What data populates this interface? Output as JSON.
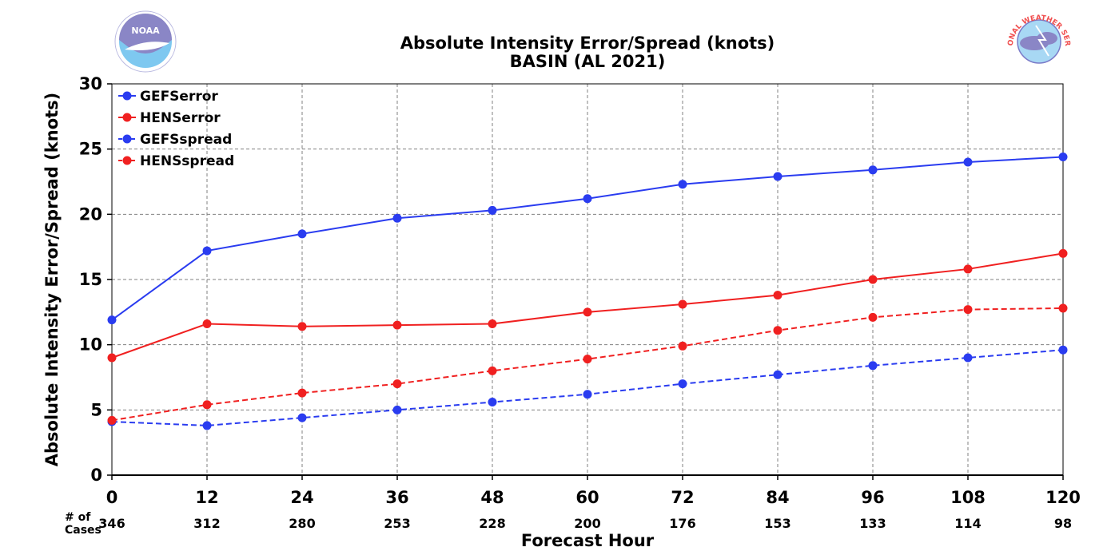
{
  "chart_data": {
    "type": "line",
    "title": "Absolute Intensity Error/Spread (knots)",
    "subtitle": "BASIN (AL 2021)",
    "xlabel": "Forecast Hour",
    "ylabel": "Absolute Intensity Error/Spread (knots)",
    "x": [
      0,
      12,
      24,
      36,
      48,
      60,
      72,
      84,
      96,
      108,
      120
    ],
    "xlim": [
      0,
      120
    ],
    "ylim": [
      0,
      30
    ],
    "yticks": [
      0,
      5,
      10,
      15,
      20,
      25,
      30
    ],
    "grid": true,
    "legend_position": "top-left",
    "cases_label": [
      "# of",
      "Cases"
    ],
    "cases": [
      346,
      312,
      280,
      253,
      228,
      200,
      176,
      153,
      133,
      114,
      98
    ],
    "series": [
      {
        "name": "GEFSerror",
        "color": "#2a3cf0",
        "style": "solid",
        "values": [
          11.9,
          17.2,
          18.5,
          19.7,
          20.3,
          21.2,
          22.3,
          22.9,
          23.4,
          24.0,
          24.4
        ]
      },
      {
        "name": "HENSerror",
        "color": "#f02020",
        "style": "solid",
        "values": [
          9.0,
          11.6,
          11.4,
          11.5,
          11.6,
          12.5,
          13.1,
          13.8,
          15.0,
          15.8,
          17.0
        ]
      },
      {
        "name": "GEFSspread",
        "color": "#2a3cf0",
        "style": "dashed",
        "values": [
          4.1,
          3.8,
          4.4,
          5.0,
          5.6,
          6.2,
          7.0,
          7.7,
          8.4,
          9.0,
          9.6
        ]
      },
      {
        "name": "HENSspread",
        "color": "#f02020",
        "style": "dashed",
        "values": [
          4.2,
          5.4,
          6.3,
          7.0,
          8.0,
          8.9,
          9.9,
          11.1,
          12.1,
          12.7,
          12.8
        ]
      }
    ]
  },
  "logos": {
    "left": {
      "icon": "noaa-logo-icon",
      "text": "NOAA"
    },
    "right": {
      "icon": "nws-logo-icon",
      "text": "NATIONAL WEATHER SERVICE"
    }
  }
}
